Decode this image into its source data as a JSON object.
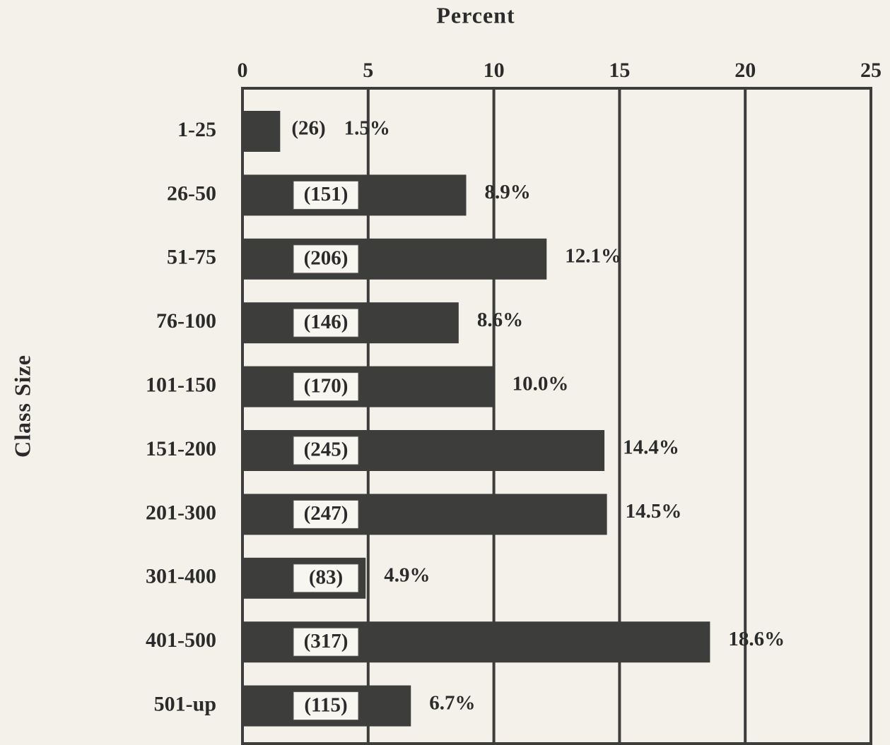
{
  "chart_data": {
    "type": "bar",
    "orientation": "horizontal",
    "title": "Percent",
    "y_label": "Class Size",
    "categories": [
      "1-25",
      "26-50",
      "51-75",
      "76-100",
      "101-150",
      "151-200",
      "201-300",
      "301-400",
      "401-500",
      "501-up"
    ],
    "values": [
      1.5,
      8.9,
      12.1,
      8.6,
      10.0,
      14.4,
      14.5,
      4.9,
      18.6,
      6.7
    ],
    "value_labels": [
      "1.5%",
      "8.9%",
      "12.1%",
      "8.6%",
      "10.0%",
      "14.4%",
      "14.5%",
      "4.9%",
      "18.6%",
      "6.7%"
    ],
    "counts": [
      26,
      151,
      206,
      146,
      170,
      245,
      247,
      83,
      317,
      115
    ],
    "count_labels": [
      "(26)",
      "(151)",
      "(206)",
      "(146)",
      "(170)",
      "(245)",
      "(247)",
      "(83)",
      "(317)",
      "(115)"
    ],
    "color": "#3d3d3b",
    "xlim": [
      0,
      25
    ],
    "xticks": [
      0,
      5,
      10,
      15,
      20,
      25
    ],
    "grid": true
  }
}
